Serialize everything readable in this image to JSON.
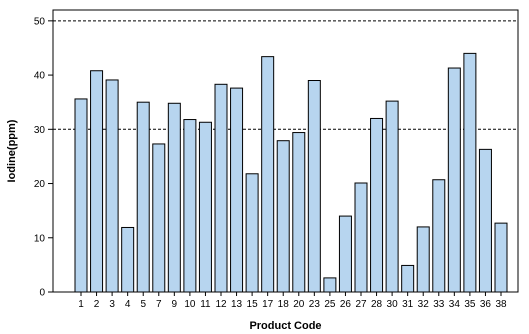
{
  "chart_data": {
    "type": "bar",
    "title": "",
    "xlabel": "Product Code",
    "ylabel": "Iodine(ppm)",
    "ylim": [
      0,
      52
    ],
    "yticks": [
      0,
      10,
      20,
      30,
      40,
      50
    ],
    "reference_lines": [
      30,
      50
    ],
    "grid": false,
    "colors": {
      "bar_fill": "#b7d5ef",
      "bar_stroke": "#000000",
      "reference_line": "#000000"
    },
    "categories": [
      "1",
      "2",
      "3",
      "4",
      "5",
      "7",
      "9",
      "10",
      "11",
      "12",
      "13",
      "15",
      "17",
      "18",
      "20",
      "23",
      "25",
      "26",
      "27",
      "28",
      "30",
      "31",
      "32",
      "33",
      "34",
      "35",
      "36",
      "38"
    ],
    "values": [
      35.6,
      40.8,
      39.1,
      11.9,
      35.0,
      27.3,
      34.8,
      31.8,
      31.3,
      38.3,
      37.6,
      21.8,
      43.4,
      27.9,
      29.4,
      39.0,
      2.6,
      14.0,
      20.1,
      32.0,
      35.2,
      4.9,
      12.0,
      20.7,
      41.3,
      44.0,
      26.3,
      12.7
    ]
  }
}
